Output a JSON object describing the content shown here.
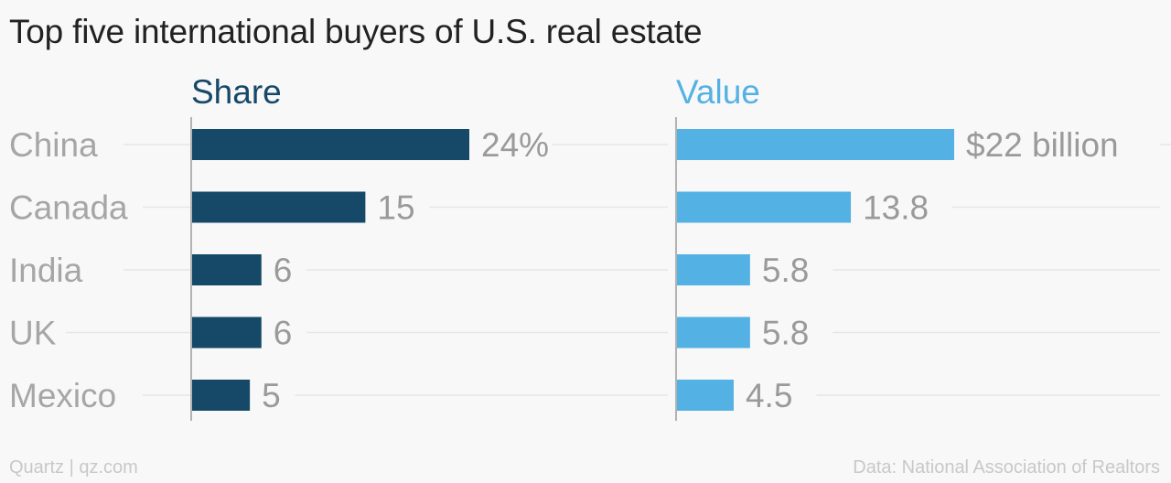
{
  "chart_data": {
    "type": "bar",
    "orientation": "horizontal",
    "title": "Top five international buyers of U.S. real estate",
    "categories": [
      "China",
      "Canada",
      "India",
      "UK",
      "Mexico"
    ],
    "series": [
      {
        "name": "Share",
        "color": "#164868",
        "values": [
          24,
          15,
          6,
          6,
          5
        ],
        "labels": [
          "24%",
          "15",
          "6",
          "6",
          "5"
        ]
      },
      {
        "name": "Value",
        "color": "#54b1e3",
        "values": [
          22,
          13.8,
          5.8,
          5.8,
          4.5
        ],
        "labels": [
          "$22 billion",
          "13.8",
          "5.8",
          "5.8",
          "4.5"
        ]
      }
    ],
    "grid": true,
    "legend": "panel titles above each panel"
  },
  "footer": {
    "source_left": "Quartz | qz.com",
    "source_right": "Data: National Association of Realtors"
  }
}
